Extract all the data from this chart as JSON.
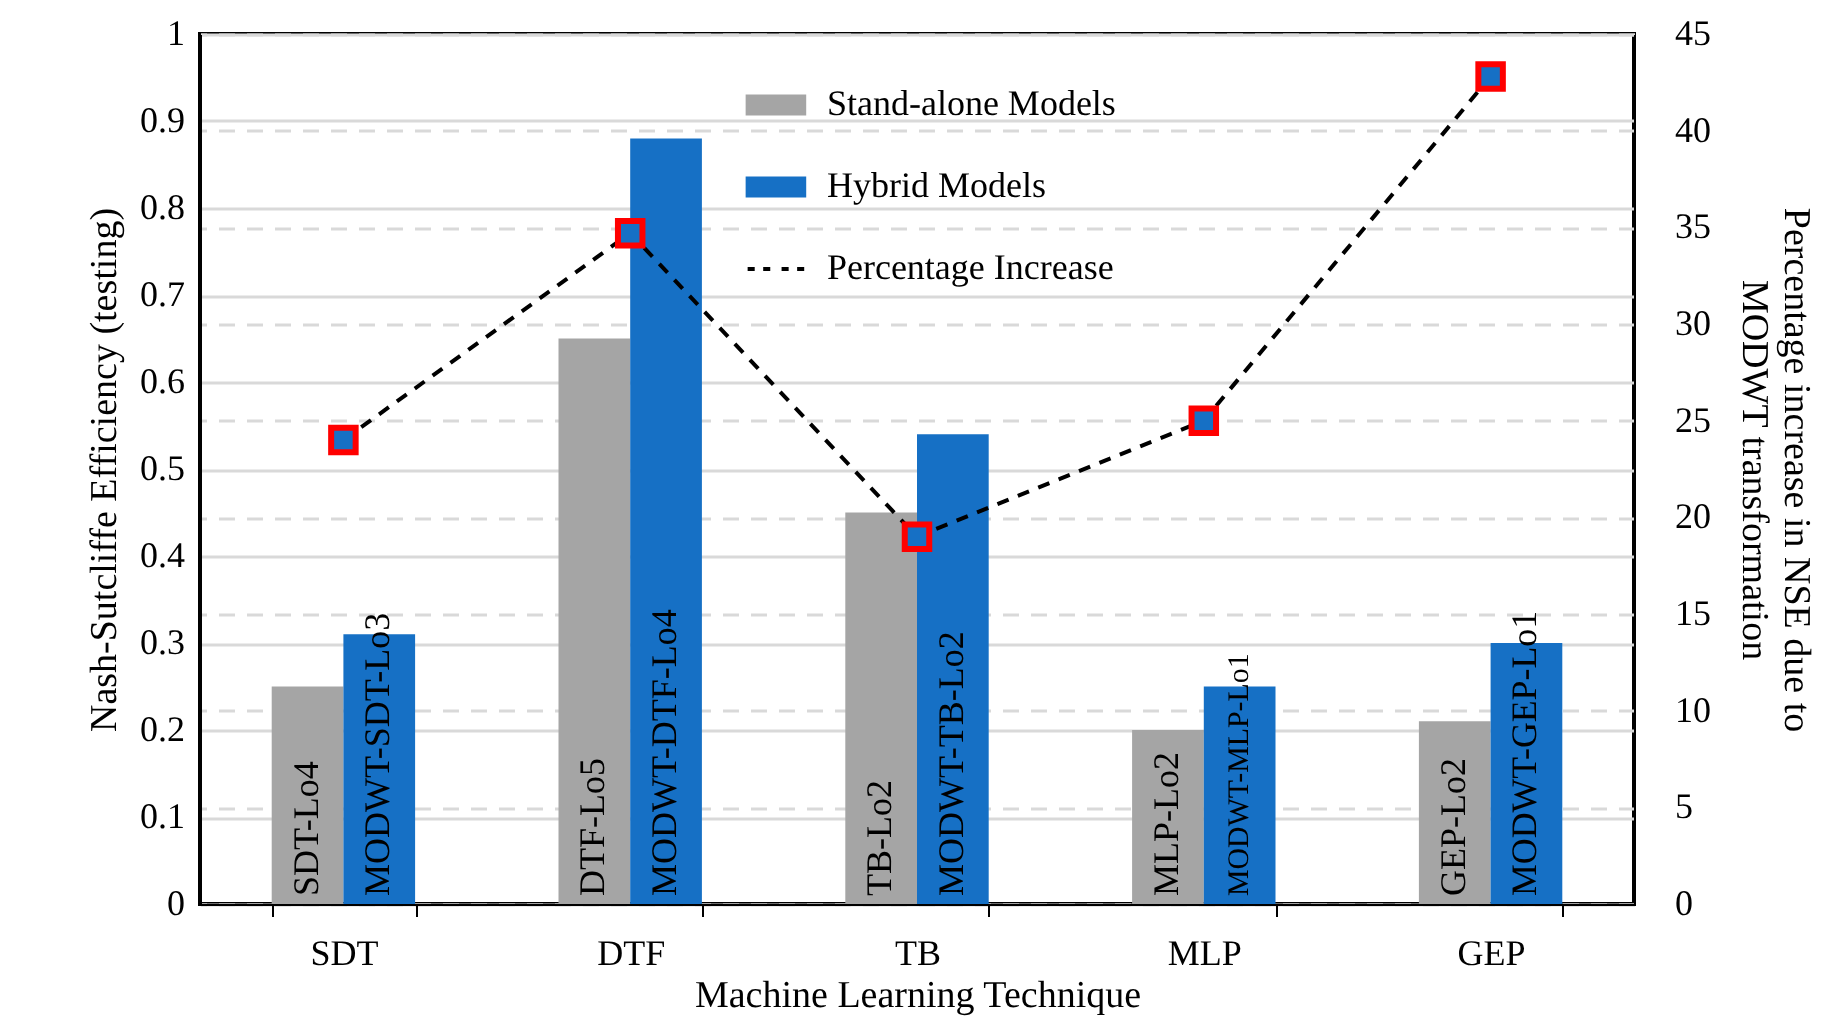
{
  "chart_data": {
    "type": "bar",
    "xlabel": "Machine Learning Technique",
    "ylabel": "Nash-Sutcliffe Efficiency (testing)",
    "y2label": "Percentage increase in NSE due to MODWT transformation",
    "categories": [
      "SDT",
      "DTF",
      "TB",
      "MLP",
      "GEP"
    ],
    "series": [
      {
        "name": "Stand-alone Models",
        "color": "#a5a5a5",
        "values": [
          0.25,
          0.65,
          0.45,
          0.2,
          0.21
        ],
        "value_labels": [
          "SDT-Lo4",
          "DTF-Lo5",
          "TB-Lo2",
          "MLP-Lo2",
          "GEP-Lo2"
        ]
      },
      {
        "name": "Hybrid Models",
        "color": "#1670c5",
        "values": [
          0.31,
          0.88,
          0.54,
          0.25,
          0.3
        ],
        "value_labels": [
          "MODWT-SDT-Lo3",
          "MODWT-DTF-Lo4",
          "MODWT-TB-Lo2",
          "MODWT-MLP-Lo1",
          "MODWT-GEP-Lo1"
        ]
      },
      {
        "name": "Percentage Increase",
        "type": "line",
        "axis": "y2",
        "color": "#000000",
        "marker": "square",
        "line_style": "dashed",
        "values": [
          24,
          34.7,
          19,
          25,
          42.8
        ]
      }
    ],
    "ylim": [
      0,
      1
    ],
    "yticks": [
      0,
      0.1,
      0.2,
      0.3,
      0.4,
      0.5,
      0.6,
      0.7,
      0.8,
      0.9,
      1
    ],
    "y2lim": [
      0,
      45
    ],
    "y2ticks": [
      0,
      5,
      10,
      15,
      20,
      25,
      30,
      35,
      40,
      45
    ],
    "grid": true,
    "legend": "top"
  }
}
